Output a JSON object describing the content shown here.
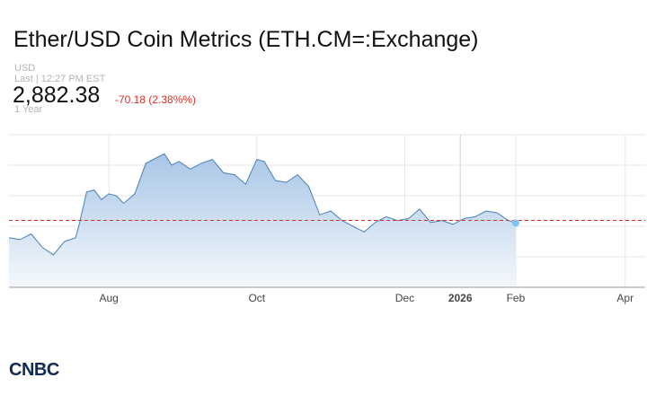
{
  "header": {
    "title": "Ether/USD Coin Metrics (ETH.CM=:Exchange)",
    "currency": "USD",
    "last_label": "Last | 12:27 PM EST",
    "price": "2,882.38",
    "change": "-70.18 (2.38%%)",
    "range": "1 Year"
  },
  "colors": {
    "line": "#4a7fb8",
    "fill_top": "#a9c6e6",
    "fill_bottom": "#f4f8fc",
    "ref_line": "#d93025",
    "marker": "#7cc8f2",
    "grid": "#e6e6e6",
    "logo": "#102a56"
  },
  "logo": {
    "text": "CNBC",
    "icon": "cnbc-logo"
  },
  "watermark": "CNBC",
  "chart_data": {
    "type": "area",
    "x_axis": {
      "ticks": [
        "Aug",
        "Oct",
        "Dec",
        "2026",
        "Feb",
        "Apr"
      ]
    },
    "x_tick_positions": [
      1.35,
      3.35,
      5.35,
      6.1,
      6.85,
      8.33
    ],
    "ylim": [
      1200,
      5200
    ],
    "reference_value": 2952.56,
    "grid": "horizontal",
    "series": [
      {
        "x": [
          0,
          0.15,
          0.3,
          0.45,
          0.6,
          0.75,
          0.9,
          0.95,
          1.05,
          1.15,
          1.25,
          1.35,
          1.45,
          1.55,
          1.7,
          1.85,
          2.0,
          2.1,
          2.2,
          2.3,
          2.45,
          2.6,
          2.75,
          2.9,
          3.05,
          3.2,
          3.35,
          3.45,
          3.6,
          3.75,
          3.9,
          4.05,
          4.2,
          4.35,
          4.5,
          4.65,
          4.8,
          4.95,
          5.1,
          5.25,
          5.4,
          5.55,
          5.7,
          5.85,
          6.0,
          6.15,
          6.3,
          6.45,
          6.6,
          6.75,
          6.85
        ],
        "values": [
          2500,
          2450,
          2600,
          2250,
          2050,
          2400,
          2500,
          2850,
          3700,
          3750,
          3500,
          3650,
          3600,
          3400,
          3650,
          4450,
          4600,
          4700,
          4400,
          4500,
          4300,
          4450,
          4550,
          4200,
          4150,
          3900,
          4550,
          4500,
          4000,
          3950,
          4150,
          3850,
          3100,
          3200,
          2950,
          2800,
          2650,
          2900,
          3050,
          2950,
          3000,
          3250,
          2900,
          2950,
          2850,
          3000,
          3050,
          3200,
          3150,
          2950,
          2882.38
        ]
      }
    ]
  }
}
